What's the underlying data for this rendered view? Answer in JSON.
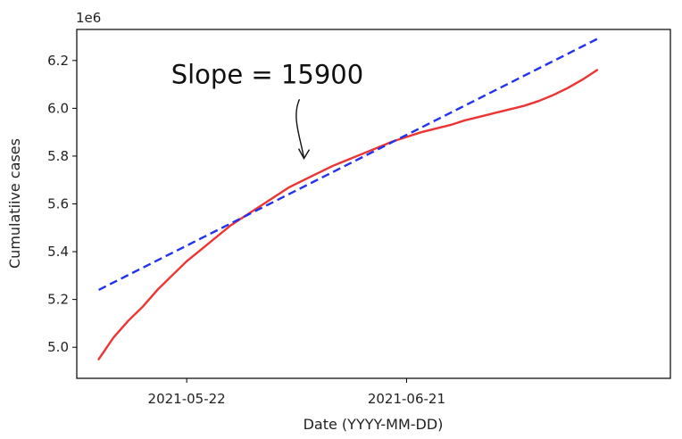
{
  "chart_data": {
    "type": "line",
    "xlabel": "Date (YYYY-MM-DD)",
    "ylabel": "Cumulatiive cases",
    "y_offset_label": "1e6",
    "ylim": [
      4.87,
      6.33
    ],
    "xlim": [
      "2021-05-07",
      "2021-07-27"
    ],
    "x_ticks": [
      "2021-05-22",
      "2021-06-21"
    ],
    "y_ticks": [
      {
        "value": 5.0,
        "label": "5.0"
      },
      {
        "value": 5.2,
        "label": "5.2"
      },
      {
        "value": 5.4,
        "label": "5.4"
      },
      {
        "value": 5.6,
        "label": "5.6"
      },
      {
        "value": 5.8,
        "label": "5.8"
      },
      {
        "value": 6.0,
        "label": "6.0"
      },
      {
        "value": 6.2,
        "label": "6.2"
      }
    ],
    "grid": false,
    "series": [
      {
        "style": "solid",
        "color": "#ee3333",
        "x": [
          "2021-05-10",
          "2021-05-12",
          "2021-05-14",
          "2021-05-16",
          "2021-05-18",
          "2021-05-20",
          "2021-05-22",
          "2021-05-24",
          "2021-05-26",
          "2021-05-28",
          "2021-05-30",
          "2021-06-01",
          "2021-06-03",
          "2021-06-05",
          "2021-06-07",
          "2021-06-09",
          "2021-06-11",
          "2021-06-13",
          "2021-06-15",
          "2021-06-17",
          "2021-06-19",
          "2021-06-21",
          "2021-06-23",
          "2021-06-25",
          "2021-06-27",
          "2021-06-29",
          "2021-07-01",
          "2021-07-03",
          "2021-07-05",
          "2021-07-07",
          "2021-07-09",
          "2021-07-11",
          "2021-07-13",
          "2021-07-15",
          "2021-07-17"
        ],
        "values": [
          4.95,
          5.04,
          5.11,
          5.17,
          5.24,
          5.3,
          5.36,
          5.41,
          5.46,
          5.51,
          5.55,
          5.59,
          5.63,
          5.67,
          5.7,
          5.73,
          5.76,
          5.785,
          5.81,
          5.835,
          5.86,
          5.88,
          5.9,
          5.915,
          5.93,
          5.95,
          5.965,
          5.98,
          5.995,
          6.01,
          6.03,
          6.055,
          6.085,
          6.12,
          6.16
        ]
      },
      {
        "style": "dashed",
        "color": "#2233ee",
        "x": [
          "2021-05-10",
          "2021-07-17"
        ],
        "values": [
          5.24,
          6.29
        ]
      }
    ],
    "annotations": [
      {
        "text": "Slope = 15900",
        "x": "2021-06-02",
        "y": 6.105,
        "arrow_to_x": "2021-06-07",
        "arrow_to_y": 5.79
      }
    ]
  }
}
